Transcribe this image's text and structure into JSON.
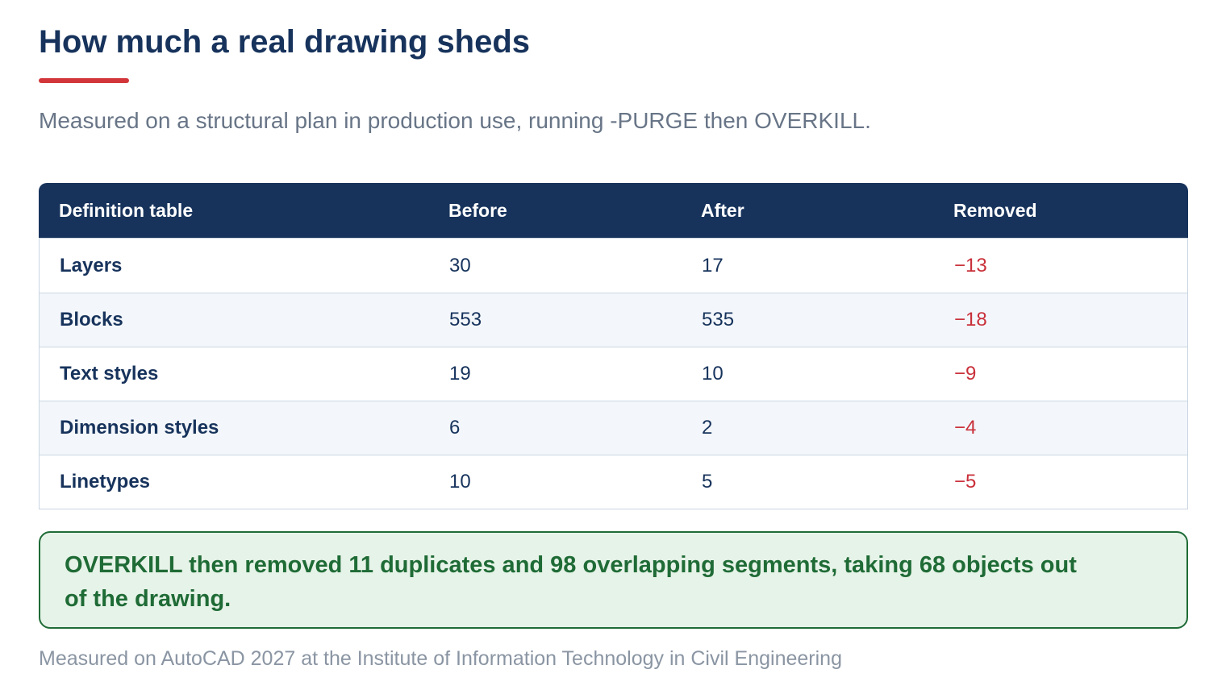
{
  "title": "How much a real drawing sheds",
  "subtitle": "Measured on a structural plan in production use, running -PURGE then OVERKILL.",
  "table": {
    "headers": [
      "Definition table",
      "Before",
      "After",
      "Removed"
    ],
    "rows": [
      {
        "name": "Layers",
        "before": "30",
        "after": "17",
        "removed": "−13"
      },
      {
        "name": "Blocks",
        "before": "553",
        "after": "535",
        "removed": "−18"
      },
      {
        "name": "Text styles",
        "before": "19",
        "after": "10",
        "removed": "−9"
      },
      {
        "name": "Dimension styles",
        "before": "6",
        "after": "2",
        "removed": "−4"
      },
      {
        "name": "Linetypes",
        "before": "10",
        "after": "5",
        "removed": "−5"
      }
    ]
  },
  "callout": "OVERKILL then removed 11 duplicates and 98 overlapping segments, taking 68 objects out of the drawing.",
  "footnote": "Measured on AutoCAD 2027 at the Institute of Information Technology in Civil Engineering",
  "colors": {
    "heading": "#17335c",
    "accent_rule": "#d2363a",
    "removed_value": "#c9303a",
    "callout_text": "#1f6b36",
    "callout_background": "#e6f3e8"
  }
}
